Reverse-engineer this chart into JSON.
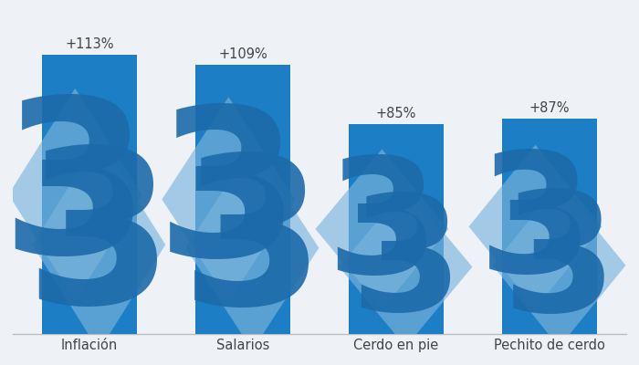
{
  "categories": [
    "Inflación",
    "Salarios",
    "Cerdo en pie",
    "Pechito de cerdo"
  ],
  "values": [
    113,
    109,
    85,
    87
  ],
  "labels": [
    "+113%",
    "+109%",
    "+85%",
    "+87%"
  ],
  "bar_color": "#1c7ec5",
  "watermark_diamond_color": "#7ab4dc",
  "watermark_3_color": "#1c6aaa",
  "background_color": "#eef2f7",
  "text_color": "#444444",
  "ylim": [
    0,
    130
  ],
  "bar_width": 0.62,
  "figsize": [
    7.0,
    4.0
  ],
  "dpi": 100
}
